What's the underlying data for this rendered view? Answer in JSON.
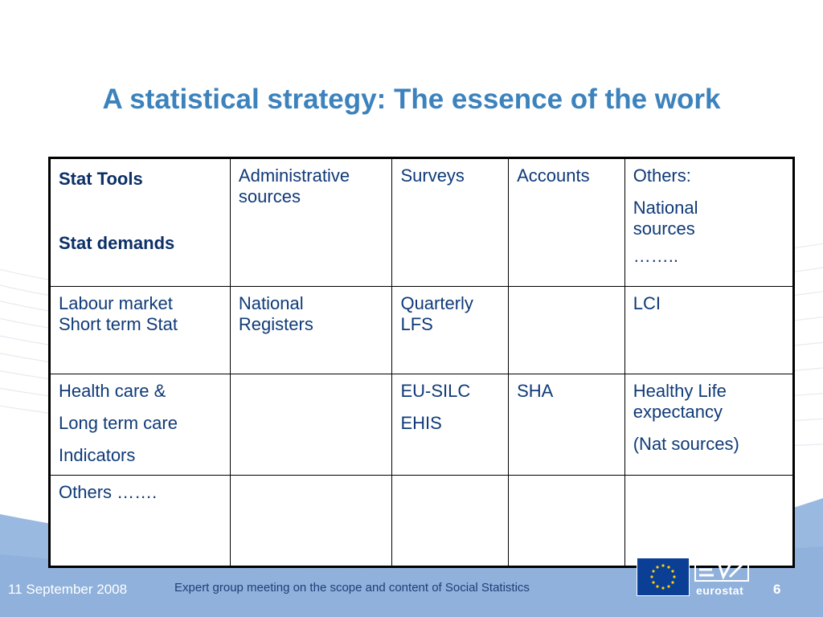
{
  "slide": {
    "title": "A statistical strategy: The essence of the work"
  },
  "table": {
    "header": {
      "stat_tools": "Stat Tools",
      "stat_demands": "Stat demands",
      "col1_line1": "Administrative",
      "col1_line2": "sources",
      "col2": "Surveys",
      "col3": "Accounts",
      "col4_line1": "Others:",
      "col4_line2": "National",
      "col4_line3": "sources",
      "col4_line4": "…….."
    },
    "row1": {
      "label_line1": "Labour market",
      "label_line2": "Short term Stat",
      "admin_line1": "National",
      "admin_line2": "Registers",
      "surveys_line1": "Quarterly",
      "surveys_line2": "LFS",
      "accounts": "",
      "others": "LCI"
    },
    "row2": {
      "label_line1": "Health care &",
      "label_line2": "Long term care",
      "label_line3": "Indicators",
      "admin": "",
      "surveys_line1": "EU-SILC",
      "surveys_line2": "EHIS",
      "accounts": "SHA",
      "others_line1": "Healthy Life",
      "others_line2": "expectancy",
      "others_line3": "(Nat sources)"
    },
    "row3": {
      "label": "Others …….",
      "admin": "",
      "surveys": "",
      "accounts": "",
      "others": ""
    }
  },
  "footer": {
    "date": "11 September 2008",
    "text": "Expert group meeting on the scope and content of Social Statistics",
    "page_number": "6",
    "logo_text": "eurostat"
  },
  "colors": {
    "title": "#3c82bd",
    "table_text": "#0f3a78",
    "footer_band": "#9ab9e0"
  }
}
